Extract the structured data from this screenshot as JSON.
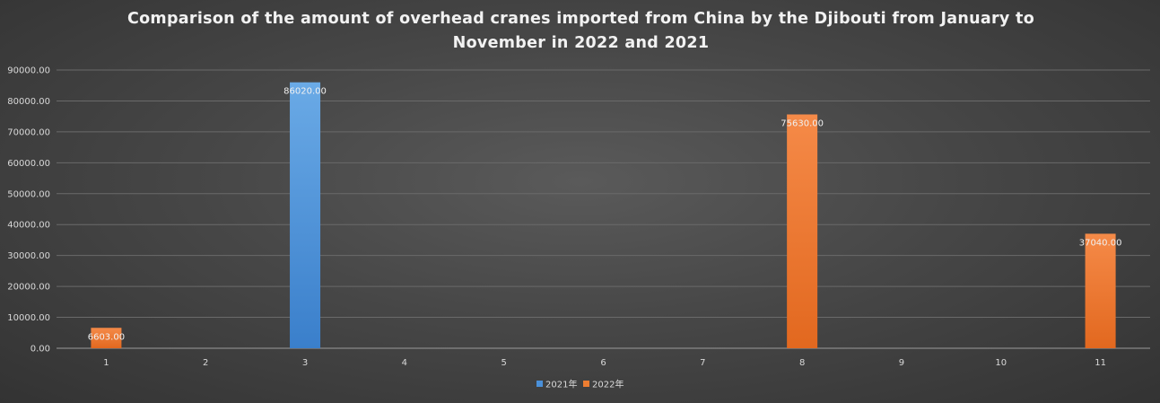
{
  "chart_data": {
    "type": "bar",
    "title": "Comparison of the amount of overhead cranes imported from China by the Djibouti from January to November in 2022 and 2021",
    "xlabel": "",
    "ylabel": "",
    "categories": [
      "1",
      "2",
      "3",
      "4",
      "5",
      "6",
      "7",
      "8",
      "9",
      "10",
      "11"
    ],
    "series": [
      {
        "name": "2021年",
        "color": "#4a90d9",
        "values": [
          0,
          0,
          86020,
          0,
          0,
          0,
          0,
          0,
          0,
          0,
          0
        ],
        "labels": [
          null,
          null,
          "86020.00",
          null,
          null,
          null,
          null,
          null,
          null,
          null,
          null
        ]
      },
      {
        "name": "2022年",
        "color": "#ed7d31",
        "values": [
          6603,
          0,
          0,
          0,
          0,
          0,
          0,
          75630,
          0,
          0,
          37040
        ],
        "labels": [
          "6603.00",
          null,
          null,
          null,
          null,
          null,
          null,
          "75630.00",
          null,
          null,
          "37040.00"
        ]
      }
    ],
    "ylim": [
      0,
      90000
    ],
    "yticks": [
      "0.00",
      "10000.00",
      "20000.00",
      "30000.00",
      "40000.00",
      "50000.00",
      "60000.00",
      "70000.00",
      "80000.00",
      "90000.00"
    ],
    "grid": true,
    "legend_position": "bottom"
  }
}
